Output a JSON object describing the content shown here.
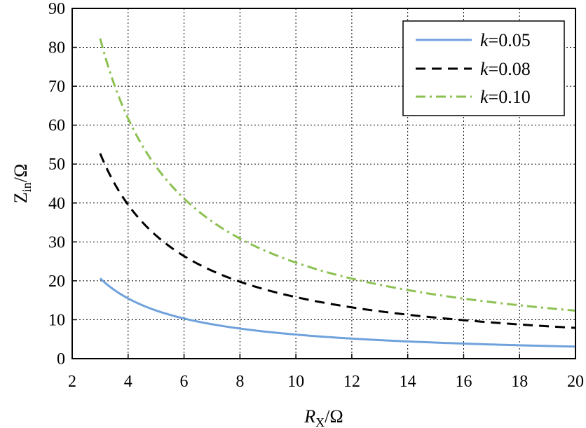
{
  "chart_data": {
    "type": "line",
    "xlabel": {
      "main": "R",
      "sub": "X",
      "suffix": "/Ω"
    },
    "ylabel": {
      "main": "Z",
      "sub": "in",
      "suffix": "/Ω"
    },
    "xlim": [
      2,
      20
    ],
    "ylim": [
      0,
      90
    ],
    "xticks": [
      "2",
      "4",
      "6",
      "8",
      "10",
      "12",
      "14",
      "16",
      "18",
      "20"
    ],
    "yticks": [
      "0",
      "10",
      "20",
      "30",
      "40",
      "50",
      "60",
      "70",
      "80",
      "90"
    ],
    "grid": true,
    "legend_position": "top-right",
    "series": [
      {
        "name": "k=0.05",
        "label_var": "k",
        "label_rest": "=0.05",
        "color": "#6fa2dc",
        "style": "solid",
        "x": [
          3,
          4,
          5,
          6,
          7,
          8,
          9,
          10,
          11,
          12,
          13,
          14,
          15,
          16,
          17,
          18,
          19,
          20
        ],
        "y": [
          20.6,
          15.5,
          12.4,
          10.3,
          8.8,
          7.7,
          6.9,
          6.2,
          5.6,
          5.2,
          4.8,
          4.4,
          4.1,
          3.9,
          3.6,
          3.4,
          3.3,
          3.1
        ]
      },
      {
        "name": "k=0.08",
        "label_var": "k",
        "label_rest": "=0.08",
        "color": "#000000",
        "style": "dashed",
        "x": [
          3,
          4,
          5,
          6,
          7,
          8,
          9,
          10,
          11,
          12,
          13,
          14,
          15,
          16,
          17,
          18,
          19,
          20
        ],
        "y": [
          52.7,
          39.5,
          31.6,
          26.3,
          22.6,
          19.8,
          17.6,
          15.8,
          14.4,
          13.2,
          12.2,
          11.3,
          10.5,
          9.9,
          9.3,
          8.8,
          8.3,
          7.9
        ]
      },
      {
        "name": "k=0.10",
        "label_var": "k",
        "label_rest": "=0.10",
        "color": "#8cc152",
        "style": "dashdot",
        "x": [
          3,
          4,
          5,
          6,
          7,
          8,
          9,
          10,
          11,
          12,
          13,
          14,
          15,
          16,
          17,
          18,
          19,
          20
        ],
        "y": [
          82.3,
          61.7,
          49.4,
          41.1,
          35.3,
          30.9,
          27.4,
          24.7,
          22.4,
          20.6,
          19.0,
          17.6,
          16.5,
          15.4,
          14.5,
          13.7,
          13.0,
          12.3
        ]
      }
    ]
  }
}
